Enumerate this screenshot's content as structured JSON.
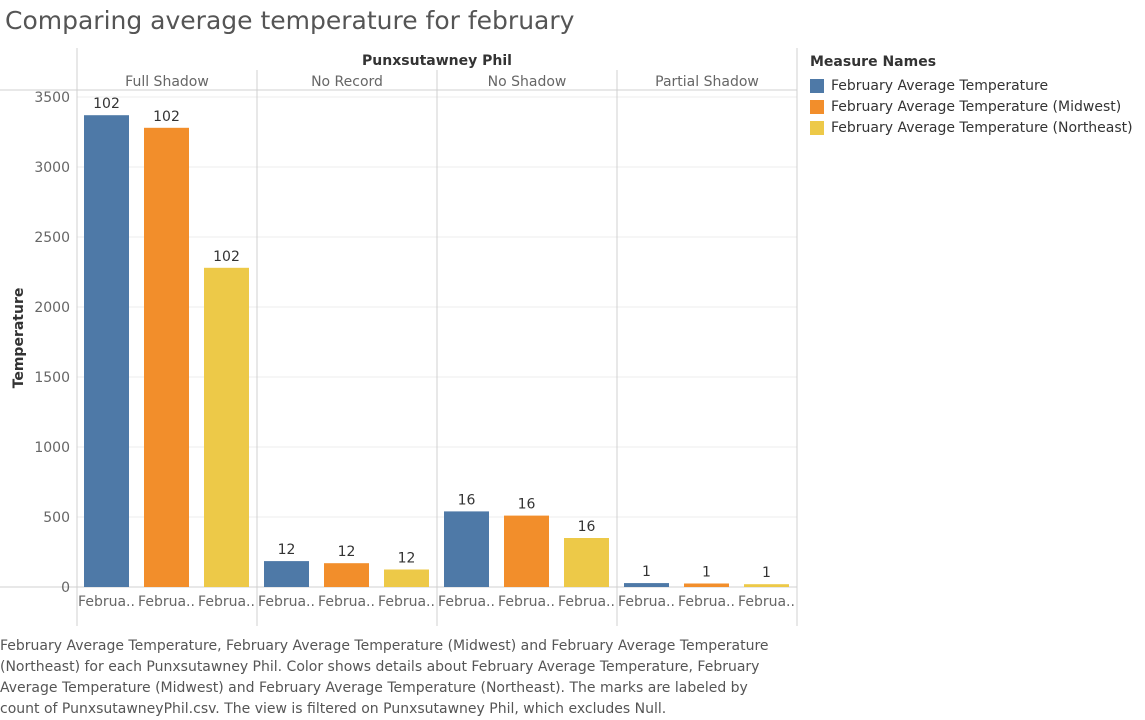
{
  "title": "Comparing average temperature for february",
  "caption": "February Average Temperature, February Average Temperature (Midwest) and February Average Temperature (Northeast) for each Punxsutawney Phil.  Color shows details about February Average Temperature, February Average Temperature (Midwest) and February Average Temperature (Northeast).  The marks are labeled by count of PunxsutawneyPhil.csv. The view is filtered on Punxsutawney Phil, which excludes Null.",
  "legend": {
    "title": "Measure Names",
    "items": [
      {
        "label": "February Average Temperature",
        "color": "#4e79a7"
      },
      {
        "label": "February Average Temperature (Midwest)",
        "color": "#f28e2b"
      },
      {
        "label": "February Average Temperature (Northeast)",
        "color": "#edc948"
      }
    ]
  },
  "chart_data": {
    "type": "bar",
    "column_header": "Punxsutawney Phil",
    "ylabel": "Temperature",
    "ylim": [
      0,
      3500
    ],
    "yticks": [
      0,
      500,
      1000,
      1500,
      2000,
      2500,
      3000,
      3500
    ],
    "grid": true,
    "categories": [
      "Full Shadow",
      "No Record",
      "No Shadow",
      "Partial Shadow"
    ],
    "x_tick_labels": [
      "Februa..",
      "Februa..",
      "Februa.."
    ],
    "series": [
      {
        "name": "February Average Temperature",
        "color": "#4e79a7",
        "values": [
          3370,
          185,
          540,
          28
        ],
        "labels": [
          "102",
          "12",
          "16",
          "1"
        ]
      },
      {
        "name": "February Average Temperature (Midwest)",
        "color": "#f28e2b",
        "values": [
          3280,
          170,
          510,
          25
        ],
        "labels": [
          "102",
          "12",
          "16",
          "1"
        ]
      },
      {
        "name": "February Average Temperature (Northeast)",
        "color": "#edc948",
        "values": [
          2280,
          125,
          350,
          20
        ],
        "labels": [
          "102",
          "12",
          "16",
          "1"
        ]
      }
    ]
  }
}
